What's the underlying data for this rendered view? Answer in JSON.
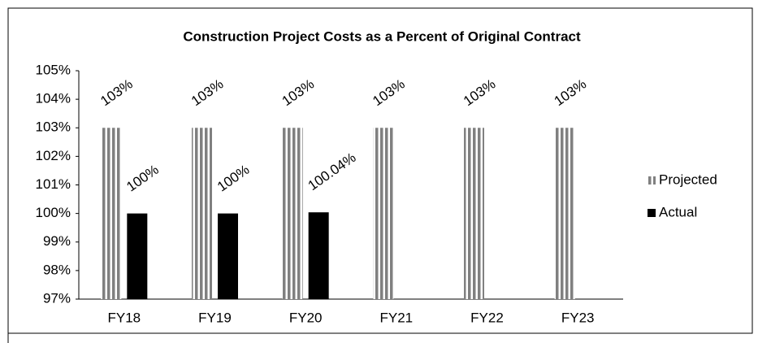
{
  "chart_data": {
    "type": "bar",
    "title": "Construction Project Costs as a Percent of Original Contract",
    "categories": [
      "FY18",
      "FY19",
      "FY20",
      "FY21",
      "FY22",
      "FY23"
    ],
    "series": [
      {
        "name": "Projected",
        "color": "#808080",
        "pattern": "vertical-stripes",
        "values": [
          103,
          103,
          103,
          103,
          103,
          103
        ],
        "value_labels": [
          "103%",
          "103%",
          "103%",
          "103%",
          "103%",
          "103%"
        ]
      },
      {
        "name": "Actual",
        "color": "#000000",
        "values": [
          100,
          100,
          100.04,
          null,
          null,
          null
        ],
        "value_labels": [
          "100%",
          "100%",
          "100.04%",
          null,
          null,
          null
        ]
      }
    ],
    "ylim": [
      97,
      105
    ],
    "yticks": [
      {
        "value": 97,
        "label": "97%"
      },
      {
        "value": 98,
        "label": "98%"
      },
      {
        "value": 99,
        "label": "99%"
      },
      {
        "value": 100,
        "label": "100%"
      },
      {
        "value": 101,
        "label": "101%"
      },
      {
        "value": 102,
        "label": "102%"
      },
      {
        "value": 103,
        "label": "103%"
      },
      {
        "value": 104,
        "label": "104%"
      },
      {
        "value": 105,
        "label": "105%"
      }
    ],
    "grid": false,
    "legend": "right"
  }
}
